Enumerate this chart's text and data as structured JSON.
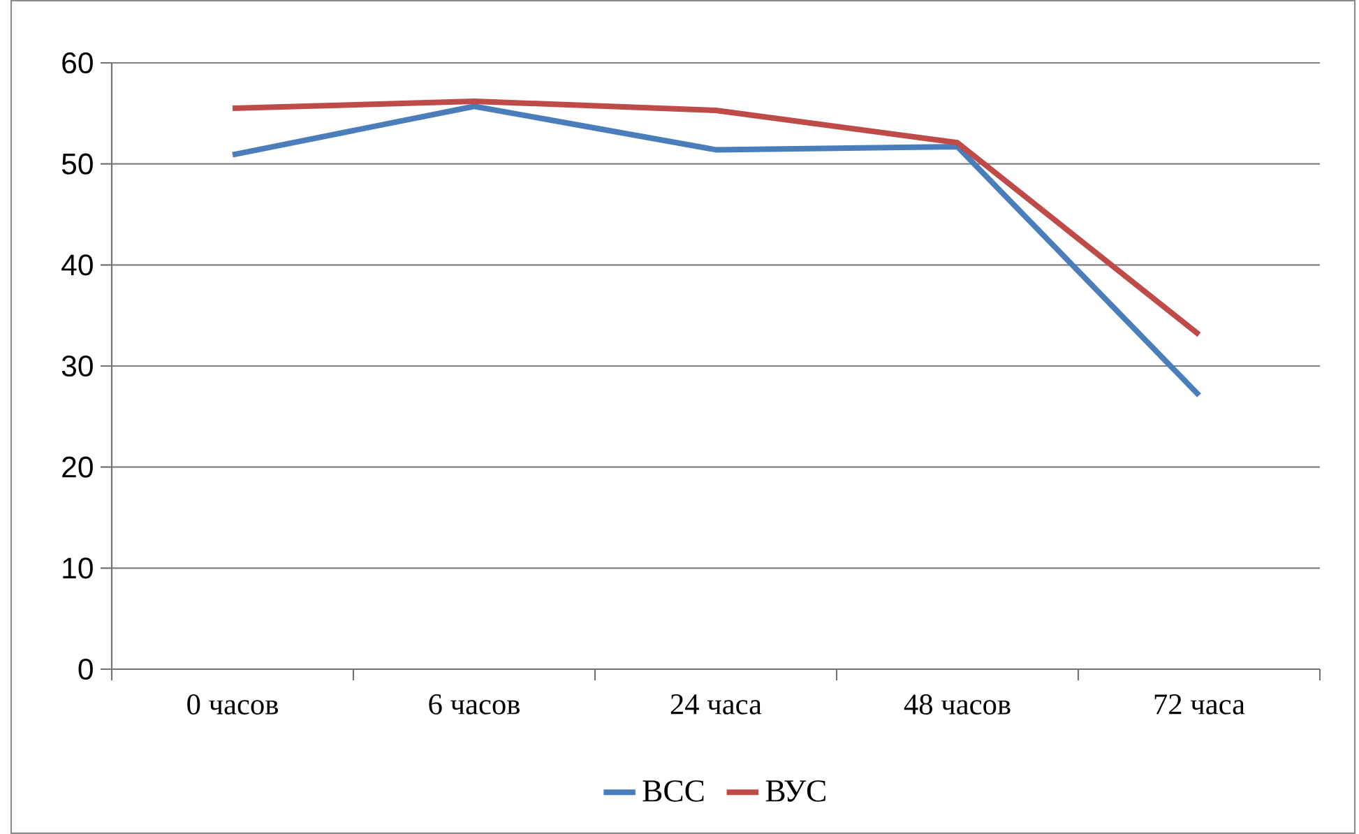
{
  "chart_data": {
    "type": "line",
    "categories": [
      "0 часов",
      "6 часов",
      "24 часа",
      "48 часов",
      "72 часа"
    ],
    "series": [
      {
        "name": "ВСС",
        "color": "#4a7ebb",
        "values": [
          50.9,
          55.7,
          51.4,
          51.7,
          27.1
        ]
      },
      {
        "name": "ВУС",
        "color": "#be4b48",
        "values": [
          55.5,
          56.2,
          55.3,
          52.1,
          33.1
        ]
      }
    ],
    "ylim": [
      0,
      60
    ],
    "yticks": [
      0,
      10,
      20,
      30,
      40,
      50,
      60
    ],
    "grid": "y",
    "legend": "bottom",
    "marker": "none",
    "line_style": "solid"
  }
}
